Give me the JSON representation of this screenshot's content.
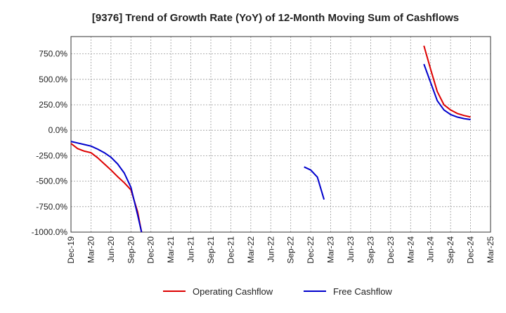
{
  "chart_data": {
    "type": "line",
    "title": "[9376]  Trend of Growth Rate (YoY) of 12-Month Moving Sum of Cashflows",
    "xlabel": "",
    "ylabel": "",
    "x_tick_labels": [
      "Dec-19",
      "Mar-20",
      "Jun-20",
      "Sep-20",
      "Dec-20",
      "Mar-21",
      "Jun-21",
      "Sep-21",
      "Dec-21",
      "Mar-22",
      "Jun-22",
      "Sep-22",
      "Dec-22",
      "Mar-23",
      "Jun-23",
      "Sep-23",
      "Dec-23",
      "Mar-24",
      "Jun-24",
      "Sep-24",
      "Dec-24",
      "Mar-25"
    ],
    "y_ticks": [
      750,
      500,
      250,
      0,
      -250,
      -500,
      -750,
      -1000
    ],
    "y_tick_labels": [
      "750.0%",
      "500.0%",
      "250.0%",
      "0.0%",
      "-250.0%",
      "-500.0%",
      "-750.0%",
      "-1000.0%"
    ],
    "ylim": [
      -1000,
      920
    ],
    "grid": true,
    "legend_position": "bottom-center",
    "series": [
      {
        "name": "Operating Cashflow",
        "color": "#dd0000",
        "segments": [
          [
            [
              0,
              -130
            ],
            [
              1,
              -180
            ],
            [
              2,
              -205
            ],
            [
              3,
              -220
            ],
            [
              4,
              -270
            ],
            [
              5,
              -330
            ],
            [
              6,
              -390
            ],
            [
              7,
              -455
            ],
            [
              8,
              -515
            ],
            [
              9,
              -585
            ],
            [
              10,
              -800
            ],
            [
              10.6,
              -1000
            ]
          ],
          [
            [
              53,
              830
            ],
            [
              54,
              600
            ],
            [
              55,
              380
            ],
            [
              56,
              250
            ],
            [
              57,
              200
            ],
            [
              58,
              165
            ],
            [
              59,
              145
            ],
            [
              60,
              130
            ]
          ]
        ]
      },
      {
        "name": "Free Cashflow",
        "color": "#0000cc",
        "segments": [
          [
            [
              0,
              -110
            ],
            [
              1,
              -125
            ],
            [
              2,
              -140
            ],
            [
              3,
              -155
            ],
            [
              4,
              -185
            ],
            [
              5,
              -220
            ],
            [
              6,
              -265
            ],
            [
              7,
              -330
            ],
            [
              8,
              -420
            ],
            [
              9,
              -560
            ],
            [
              10,
              -830
            ],
            [
              10.6,
              -1000
            ]
          ],
          [
            [
              35,
              -360
            ],
            [
              36,
              -390
            ],
            [
              37,
              -460
            ],
            [
              38,
              -680
            ]
          ],
          [
            [
              53,
              650
            ],
            [
              54,
              470
            ],
            [
              55,
              290
            ],
            [
              56,
              200
            ],
            [
              57,
              155
            ],
            [
              58,
              130
            ],
            [
              59,
              115
            ],
            [
              60,
              105
            ]
          ]
        ]
      }
    ]
  }
}
